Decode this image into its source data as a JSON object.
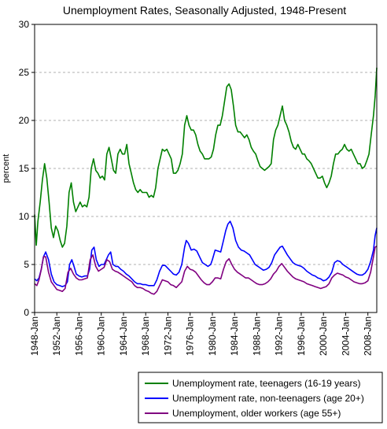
{
  "chart_data": {
    "type": "line",
    "title": "Unemployment Rates, Seasonally Adjusted, 1948-Present",
    "xlabel": "",
    "ylabel": "percent",
    "ylim": [
      0,
      30
    ],
    "xlim": [
      1948.0,
      2009.6
    ],
    "yticks": [
      "0",
      "5",
      "10",
      "15",
      "20",
      "25",
      "30"
    ],
    "xticks": [
      "1948-Jan",
      "1952-Jan",
      "1956-Jan",
      "1960-Jan",
      "1964-Jan",
      "1968-Jan",
      "1972-Jan",
      "1976-Jan",
      "1980-Jan",
      "1984-Jan",
      "1988-Jan",
      "1992-Jan",
      "1996-Jan",
      "2000-Jan",
      "2004-Jan",
      "2008-Jan"
    ],
    "grid": "horizontal dashed",
    "legend_position": "bottom-right",
    "series": [
      {
        "name": "Unemployment rate, teenagers (16-19 years)",
        "color": "#008000",
        "x": [
          1948.0,
          1948.3,
          1948.6,
          1949.0,
          1949.4,
          1949.8,
          1950.2,
          1950.6,
          1951.0,
          1951.4,
          1951.8,
          1952.2,
          1952.6,
          1953.0,
          1953.4,
          1953.8,
          1954.2,
          1954.6,
          1955.0,
          1955.4,
          1955.8,
          1956.2,
          1956.6,
          1957.0,
          1957.4,
          1957.8,
          1958.2,
          1958.6,
          1959.0,
          1959.4,
          1959.8,
          1960.2,
          1960.6,
          1961.0,
          1961.4,
          1961.8,
          1962.2,
          1962.6,
          1963.0,
          1963.4,
          1963.8,
          1964.2,
          1964.6,
          1965.0,
          1965.4,
          1965.8,
          1966.2,
          1966.6,
          1967.0,
          1967.4,
          1967.8,
          1968.2,
          1968.6,
          1969.0,
          1969.4,
          1969.8,
          1970.2,
          1970.6,
          1971.0,
          1971.4,
          1971.8,
          1972.2,
          1972.6,
          1973.0,
          1973.4,
          1973.8,
          1974.2,
          1974.6,
          1975.0,
          1975.4,
          1975.8,
          1976.2,
          1976.6,
          1977.0,
          1977.4,
          1977.8,
          1978.2,
          1978.6,
          1979.0,
          1979.4,
          1979.8,
          1980.2,
          1980.6,
          1981.0,
          1981.4,
          1981.8,
          1982.2,
          1982.6,
          1983.0,
          1983.4,
          1983.8,
          1984.2,
          1984.6,
          1985.0,
          1985.4,
          1985.8,
          1986.2,
          1986.6,
          1987.0,
          1987.4,
          1987.8,
          1988.2,
          1988.6,
          1989.0,
          1989.4,
          1989.8,
          1990.2,
          1990.6,
          1991.0,
          1991.4,
          1991.8,
          1992.2,
          1992.6,
          1993.0,
          1993.4,
          1993.8,
          1994.2,
          1994.6,
          1995.0,
          1995.4,
          1995.8,
          1996.2,
          1996.6,
          1997.0,
          1997.4,
          1997.8,
          1998.2,
          1998.6,
          1999.0,
          1999.4,
          1999.8,
          2000.2,
          2000.6,
          2001.0,
          2001.4,
          2001.8,
          2002.2,
          2002.6,
          2003.0,
          2003.4,
          2003.8,
          2004.2,
          2004.6,
          2005.0,
          2005.4,
          2005.8,
          2006.2,
          2006.6,
          2007.0,
          2007.4,
          2007.8,
          2008.2,
          2008.6,
          2009.0,
          2009.3,
          2009.6
        ],
        "values": [
          10.2,
          7.0,
          9.5,
          11.5,
          13.8,
          15.5,
          14.0,
          11.5,
          8.8,
          7.8,
          9.0,
          8.5,
          7.5,
          6.8,
          7.2,
          9.0,
          12.5,
          13.5,
          11.5,
          10.5,
          11.0,
          11.5,
          11.0,
          11.2,
          11.0,
          12.0,
          15.0,
          16.0,
          14.8,
          14.5,
          14.0,
          14.2,
          13.8,
          16.5,
          17.2,
          16.0,
          14.8,
          14.5,
          16.5,
          17.0,
          16.5,
          16.5,
          17.5,
          15.5,
          14.5,
          13.5,
          12.8,
          12.5,
          12.8,
          12.5,
          12.5,
          12.5,
          12.0,
          12.2,
          12.0,
          13.0,
          15.0,
          16.0,
          17.0,
          16.8,
          17.0,
          16.5,
          16.0,
          14.5,
          14.5,
          14.8,
          15.5,
          16.5,
          19.5,
          20.5,
          19.5,
          19.0,
          19.0,
          18.5,
          17.5,
          16.8,
          16.5,
          16.0,
          16.0,
          16.0,
          16.2,
          17.0,
          18.5,
          19.5,
          19.5,
          20.5,
          22.0,
          23.5,
          23.8,
          23.2,
          21.5,
          19.5,
          18.8,
          18.8,
          18.5,
          18.2,
          18.5,
          18.0,
          17.2,
          16.8,
          16.5,
          15.8,
          15.2,
          15.0,
          14.8,
          15.0,
          15.2,
          15.5,
          18.0,
          19.0,
          19.5,
          20.5,
          21.5,
          20.0,
          19.5,
          18.8,
          17.8,
          17.2,
          17.0,
          17.5,
          17.0,
          16.5,
          16.5,
          16.0,
          15.8,
          15.5,
          15.0,
          14.5,
          14.0,
          14.0,
          14.2,
          13.5,
          13.0,
          13.5,
          14.2,
          15.5,
          16.5,
          16.5,
          16.8,
          17.0,
          17.5,
          17.0,
          16.8,
          17.0,
          16.5,
          16.0,
          15.5,
          15.5,
          15.0,
          15.2,
          15.8,
          16.5,
          18.5,
          20.5,
          22.5,
          25.5
        ]
      },
      {
        "name": "Unemployment rate, non-teenagers (age 20+)",
        "color": "#0000ff",
        "x": [
          1948.0,
          1948.4,
          1948.8,
          1949.2,
          1949.6,
          1950.0,
          1950.5,
          1951.0,
          1951.5,
          1952.0,
          1952.5,
          1953.0,
          1953.5,
          1953.9,
          1954.3,
          1954.7,
          1955.1,
          1955.5,
          1956.0,
          1956.5,
          1957.0,
          1957.5,
          1957.9,
          1958.3,
          1958.7,
          1959.1,
          1959.6,
          1960.0,
          1960.5,
          1960.9,
          1961.3,
          1961.7,
          1962.1,
          1962.6,
          1963.0,
          1963.5,
          1964.0,
          1964.5,
          1965.0,
          1965.5,
          1966.0,
          1966.5,
          1967.0,
          1967.5,
          1968.0,
          1968.5,
          1969.0,
          1969.5,
          1970.0,
          1970.5,
          1971.0,
          1971.5,
          1972.0,
          1972.5,
          1973.0,
          1973.5,
          1974.0,
          1974.5,
          1975.0,
          1975.3,
          1975.7,
          1976.2,
          1976.7,
          1977.2,
          1977.7,
          1978.2,
          1978.7,
          1979.2,
          1979.7,
          1980.0,
          1980.5,
          1981.0,
          1981.5,
          1982.0,
          1982.4,
          1982.8,
          1983.2,
          1983.7,
          1984.2,
          1984.7,
          1985.2,
          1985.7,
          1986.2,
          1986.7,
          1987.2,
          1987.7,
          1988.2,
          1988.7,
          1989.2,
          1989.7,
          1990.2,
          1990.7,
          1991.2,
          1991.7,
          1992.2,
          1992.6,
          1993.0,
          1993.5,
          1994.0,
          1994.5,
          1995.0,
          1995.5,
          1996.0,
          1996.5,
          1997.0,
          1997.5,
          1998.0,
          1998.5,
          1999.0,
          1999.5,
          2000.0,
          2000.5,
          2001.0,
          2001.5,
          2002.0,
          2002.5,
          2003.0,
          2003.5,
          2004.0,
          2004.5,
          2005.0,
          2005.5,
          2006.0,
          2006.5,
          2007.0,
          2007.5,
          2008.0,
          2008.5,
          2009.0,
          2009.3,
          2009.6
        ],
        "values": [
          3.5,
          3.3,
          3.6,
          4.5,
          5.8,
          6.3,
          5.5,
          4.0,
          3.2,
          2.9,
          2.8,
          2.7,
          2.8,
          3.2,
          5.0,
          5.5,
          4.8,
          4.0,
          3.8,
          3.7,
          3.8,
          3.8,
          4.5,
          6.5,
          6.8,
          5.5,
          4.8,
          5.0,
          5.0,
          5.5,
          6.0,
          6.3,
          5.0,
          4.8,
          4.8,
          4.5,
          4.3,
          4.0,
          3.8,
          3.5,
          3.2,
          3.0,
          3.0,
          2.9,
          2.9,
          2.8,
          2.8,
          2.8,
          3.4,
          4.3,
          4.9,
          4.9,
          4.6,
          4.3,
          4.0,
          3.9,
          4.2,
          5.0,
          6.8,
          7.5,
          7.2,
          6.5,
          6.6,
          6.4,
          5.8,
          5.2,
          5.0,
          4.8,
          5.0,
          5.5,
          6.5,
          6.4,
          6.3,
          7.5,
          8.5,
          9.2,
          9.5,
          8.8,
          7.5,
          6.8,
          6.5,
          6.4,
          6.2,
          6.0,
          5.5,
          5.0,
          4.8,
          4.6,
          4.4,
          4.5,
          4.7,
          5.2,
          6.0,
          6.4,
          6.8,
          6.9,
          6.5,
          6.0,
          5.6,
          5.2,
          5.0,
          4.9,
          4.8,
          4.6,
          4.3,
          4.1,
          3.9,
          3.8,
          3.6,
          3.5,
          3.3,
          3.4,
          3.7,
          4.2,
          5.2,
          5.4,
          5.3,
          5.0,
          4.8,
          4.6,
          4.4,
          4.2,
          4.0,
          3.9,
          3.9,
          4.1,
          4.5,
          5.3,
          6.5,
          8.0,
          8.8
        ]
      },
      {
        "name": "Unemployment, older workers (age 55+)",
        "color": "#800080",
        "x": [
          1948.0,
          1948.4,
          1948.8,
          1949.2,
          1949.6,
          1950.0,
          1950.5,
          1951.0,
          1951.5,
          1952.0,
          1952.5,
          1953.0,
          1953.5,
          1954.0,
          1954.5,
          1955.0,
          1955.5,
          1956.0,
          1956.5,
          1957.0,
          1957.5,
          1958.0,
          1958.5,
          1959.0,
          1959.5,
          1960.0,
          1960.5,
          1961.0,
          1961.5,
          1962.0,
          1962.5,
          1963.0,
          1963.5,
          1964.0,
          1964.5,
          1965.0,
          1965.5,
          1966.0,
          1966.5,
          1967.0,
          1967.5,
          1968.0,
          1968.5,
          1969.0,
          1969.5,
          1970.0,
          1970.5,
          1971.0,
          1971.5,
          1972.0,
          1972.5,
          1973.0,
          1973.5,
          1974.0,
          1974.5,
          1975.0,
          1975.5,
          1976.0,
          1976.5,
          1977.0,
          1977.5,
          1978.0,
          1978.5,
          1979.0,
          1979.5,
          1980.0,
          1980.5,
          1981.0,
          1981.5,
          1982.0,
          1982.5,
          1983.0,
          1983.5,
          1984.0,
          1984.5,
          1985.0,
          1985.5,
          1986.0,
          1986.5,
          1987.0,
          1987.5,
          1988.0,
          1988.5,
          1989.0,
          1989.5,
          1990.0,
          1990.5,
          1991.0,
          1991.5,
          1992.0,
          1992.5,
          1993.0,
          1993.5,
          1994.0,
          1994.5,
          1995.0,
          1995.5,
          1996.0,
          1996.5,
          1997.0,
          1997.5,
          1998.0,
          1998.5,
          1999.0,
          1999.5,
          2000.0,
          2000.5,
          2001.0,
          2001.5,
          2002.0,
          2002.5,
          2003.0,
          2003.5,
          2004.0,
          2004.5,
          2005.0,
          2005.5,
          2006.0,
          2006.5,
          2007.0,
          2007.5,
          2008.0,
          2008.5,
          2009.0,
          2009.3,
          2009.6
        ],
        "values": [
          3.0,
          2.8,
          3.4,
          4.5,
          5.8,
          5.8,
          4.2,
          3.2,
          2.8,
          2.4,
          2.3,
          2.2,
          2.5,
          4.2,
          4.6,
          4.0,
          3.6,
          3.4,
          3.4,
          3.5,
          3.6,
          5.5,
          6.0,
          4.8,
          4.3,
          4.5,
          4.7,
          5.5,
          5.3,
          4.5,
          4.3,
          4.2,
          4.0,
          3.8,
          3.6,
          3.4,
          3.2,
          2.8,
          2.6,
          2.6,
          2.5,
          2.3,
          2.2,
          2.0,
          1.9,
          2.2,
          2.8,
          3.4,
          3.3,
          3.2,
          2.9,
          2.8,
          2.6,
          2.9,
          3.2,
          4.3,
          4.8,
          4.5,
          4.4,
          4.2,
          3.8,
          3.4,
          3.1,
          2.9,
          2.9,
          3.2,
          3.6,
          3.6,
          3.5,
          4.5,
          5.3,
          5.6,
          5.0,
          4.5,
          4.2,
          4.0,
          3.8,
          3.6,
          3.6,
          3.4,
          3.2,
          3.0,
          2.9,
          2.9,
          3.0,
          3.2,
          3.5,
          4.0,
          4.3,
          4.8,
          5.1,
          4.7,
          4.3,
          4.0,
          3.7,
          3.5,
          3.4,
          3.3,
          3.2,
          3.0,
          2.9,
          2.8,
          2.7,
          2.6,
          2.5,
          2.6,
          2.7,
          3.0,
          3.6,
          3.9,
          4.1,
          4.0,
          3.9,
          3.7,
          3.6,
          3.4,
          3.2,
          3.1,
          3.0,
          3.0,
          3.1,
          3.3,
          4.2,
          5.8,
          6.8,
          6.9
        ]
      }
    ]
  }
}
